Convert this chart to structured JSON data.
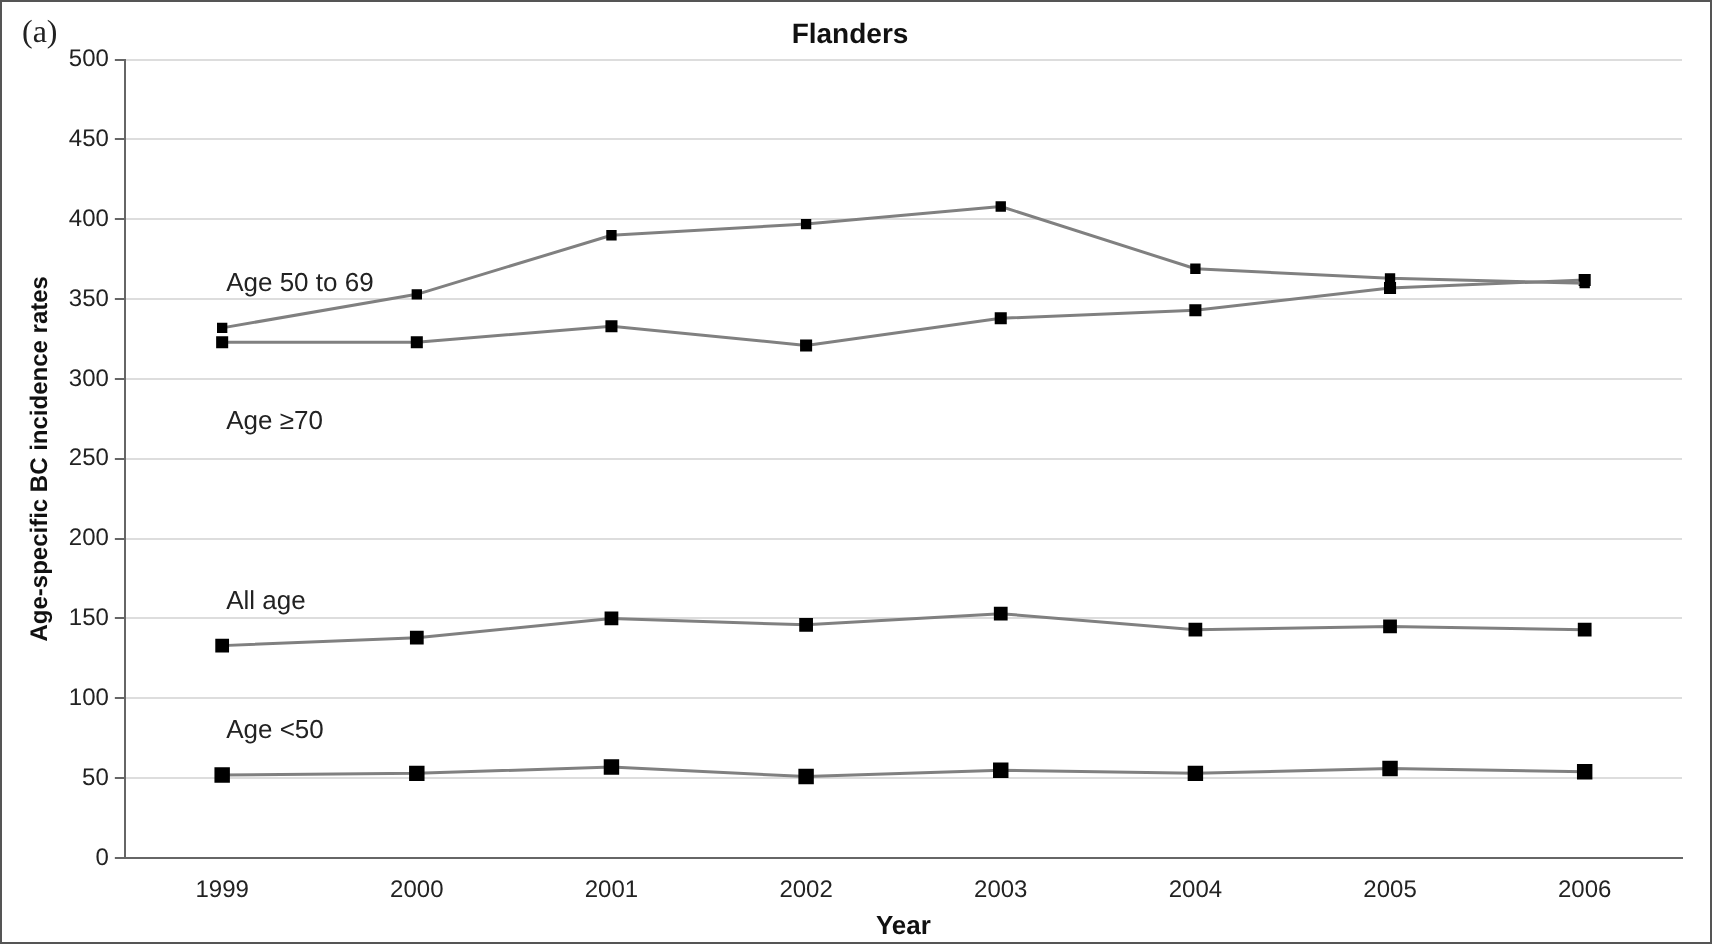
{
  "chart_data": {
    "type": "line",
    "title": "Flanders",
    "xlabel": "Year",
    "ylabel": "Age-specific BC incidence rates",
    "annotations": [
      "(a)"
    ],
    "categories": [
      "1999",
      "2000",
      "2001",
      "2002",
      "2003",
      "2004",
      "2005",
      "2006"
    ],
    "series": [
      {
        "name": "Age 50 to 69",
        "color": "#808080",
        "values": [
          332,
          353,
          390,
          397,
          408,
          369,
          363,
          360
        ]
      },
      {
        "name": "Age ≥70",
        "color": "#808080",
        "values": [
          323,
          323,
          333,
          321,
          338,
          343,
          357,
          362
        ]
      },
      {
        "name": "All age",
        "color": "#808080",
        "values": [
          133,
          138,
          150,
          146,
          153,
          143,
          145,
          143
        ]
      },
      {
        "name": "Age <50",
        "color": "#808080",
        "values": [
          52,
          53,
          57,
          51,
          55,
          53,
          56,
          54
        ]
      }
    ],
    "ylim": [
      0,
      500
    ],
    "yticks": [
      0,
      50,
      100,
      150,
      200,
      250,
      300,
      350,
      400,
      450,
      500
    ],
    "grid": "y",
    "legend": false,
    "marker": "square",
    "line_style": "solid"
  }
}
